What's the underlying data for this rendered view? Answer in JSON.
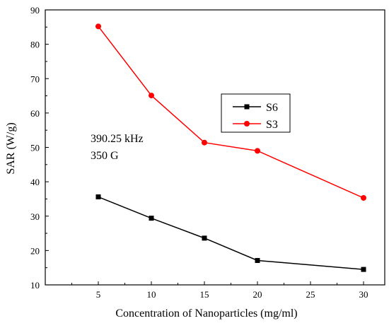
{
  "chart_data": {
    "type": "line",
    "xlabel": "Concentration of Nanoparticles (mg/ml)",
    "ylabel": "SAR (W/g)",
    "xlim": [
      0,
      32
    ],
    "ylim": [
      10,
      90
    ],
    "xticks": [
      5,
      10,
      15,
      20,
      25,
      30
    ],
    "yticks": [
      10,
      20,
      30,
      40,
      50,
      60,
      70,
      80,
      90
    ],
    "grid": false,
    "legend_position": "right-center",
    "annotations": [
      "390.25 kHz",
      "350 G"
    ],
    "series": [
      {
        "name": "S6",
        "color": "#000000",
        "marker": "square",
        "x": [
          5,
          10,
          15,
          20,
          30
        ],
        "y": [
          35.6,
          29.4,
          23.6,
          17.1,
          14.5
        ]
      },
      {
        "name": "S3",
        "color": "#ff0000",
        "marker": "circle",
        "x": [
          5,
          10,
          15,
          20,
          30
        ],
        "y": [
          85.2,
          65.1,
          51.4,
          49.0,
          35.3
        ]
      }
    ]
  }
}
